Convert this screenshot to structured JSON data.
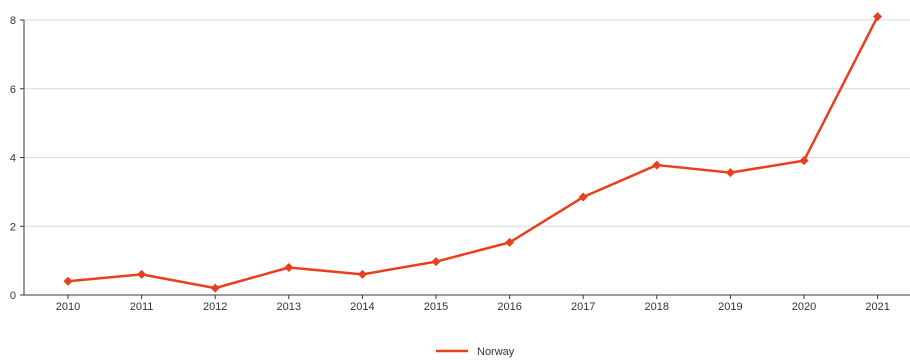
{
  "chart_data": {
    "type": "line",
    "title": "",
    "xlabel": "",
    "ylabel": "",
    "categories": [
      "2010",
      "2011",
      "2012",
      "2013",
      "2014",
      "2015",
      "2016",
      "2017",
      "2018",
      "2019",
      "2020",
      "2021"
    ],
    "ylim": [
      0,
      8
    ],
    "yticks": [
      "0",
      "2",
      "4",
      "6",
      "8"
    ],
    "grid": true,
    "legend_position": "bottom-center",
    "series": [
      {
        "name": "Norway",
        "color": "#e8401c",
        "marker": "diamond",
        "values": [
          0.4,
          0.6,
          0.2,
          0.8,
          0.6,
          0.97,
          1.53,
          2.85,
          3.78,
          3.56,
          3.91,
          8.1
        ]
      }
    ]
  }
}
